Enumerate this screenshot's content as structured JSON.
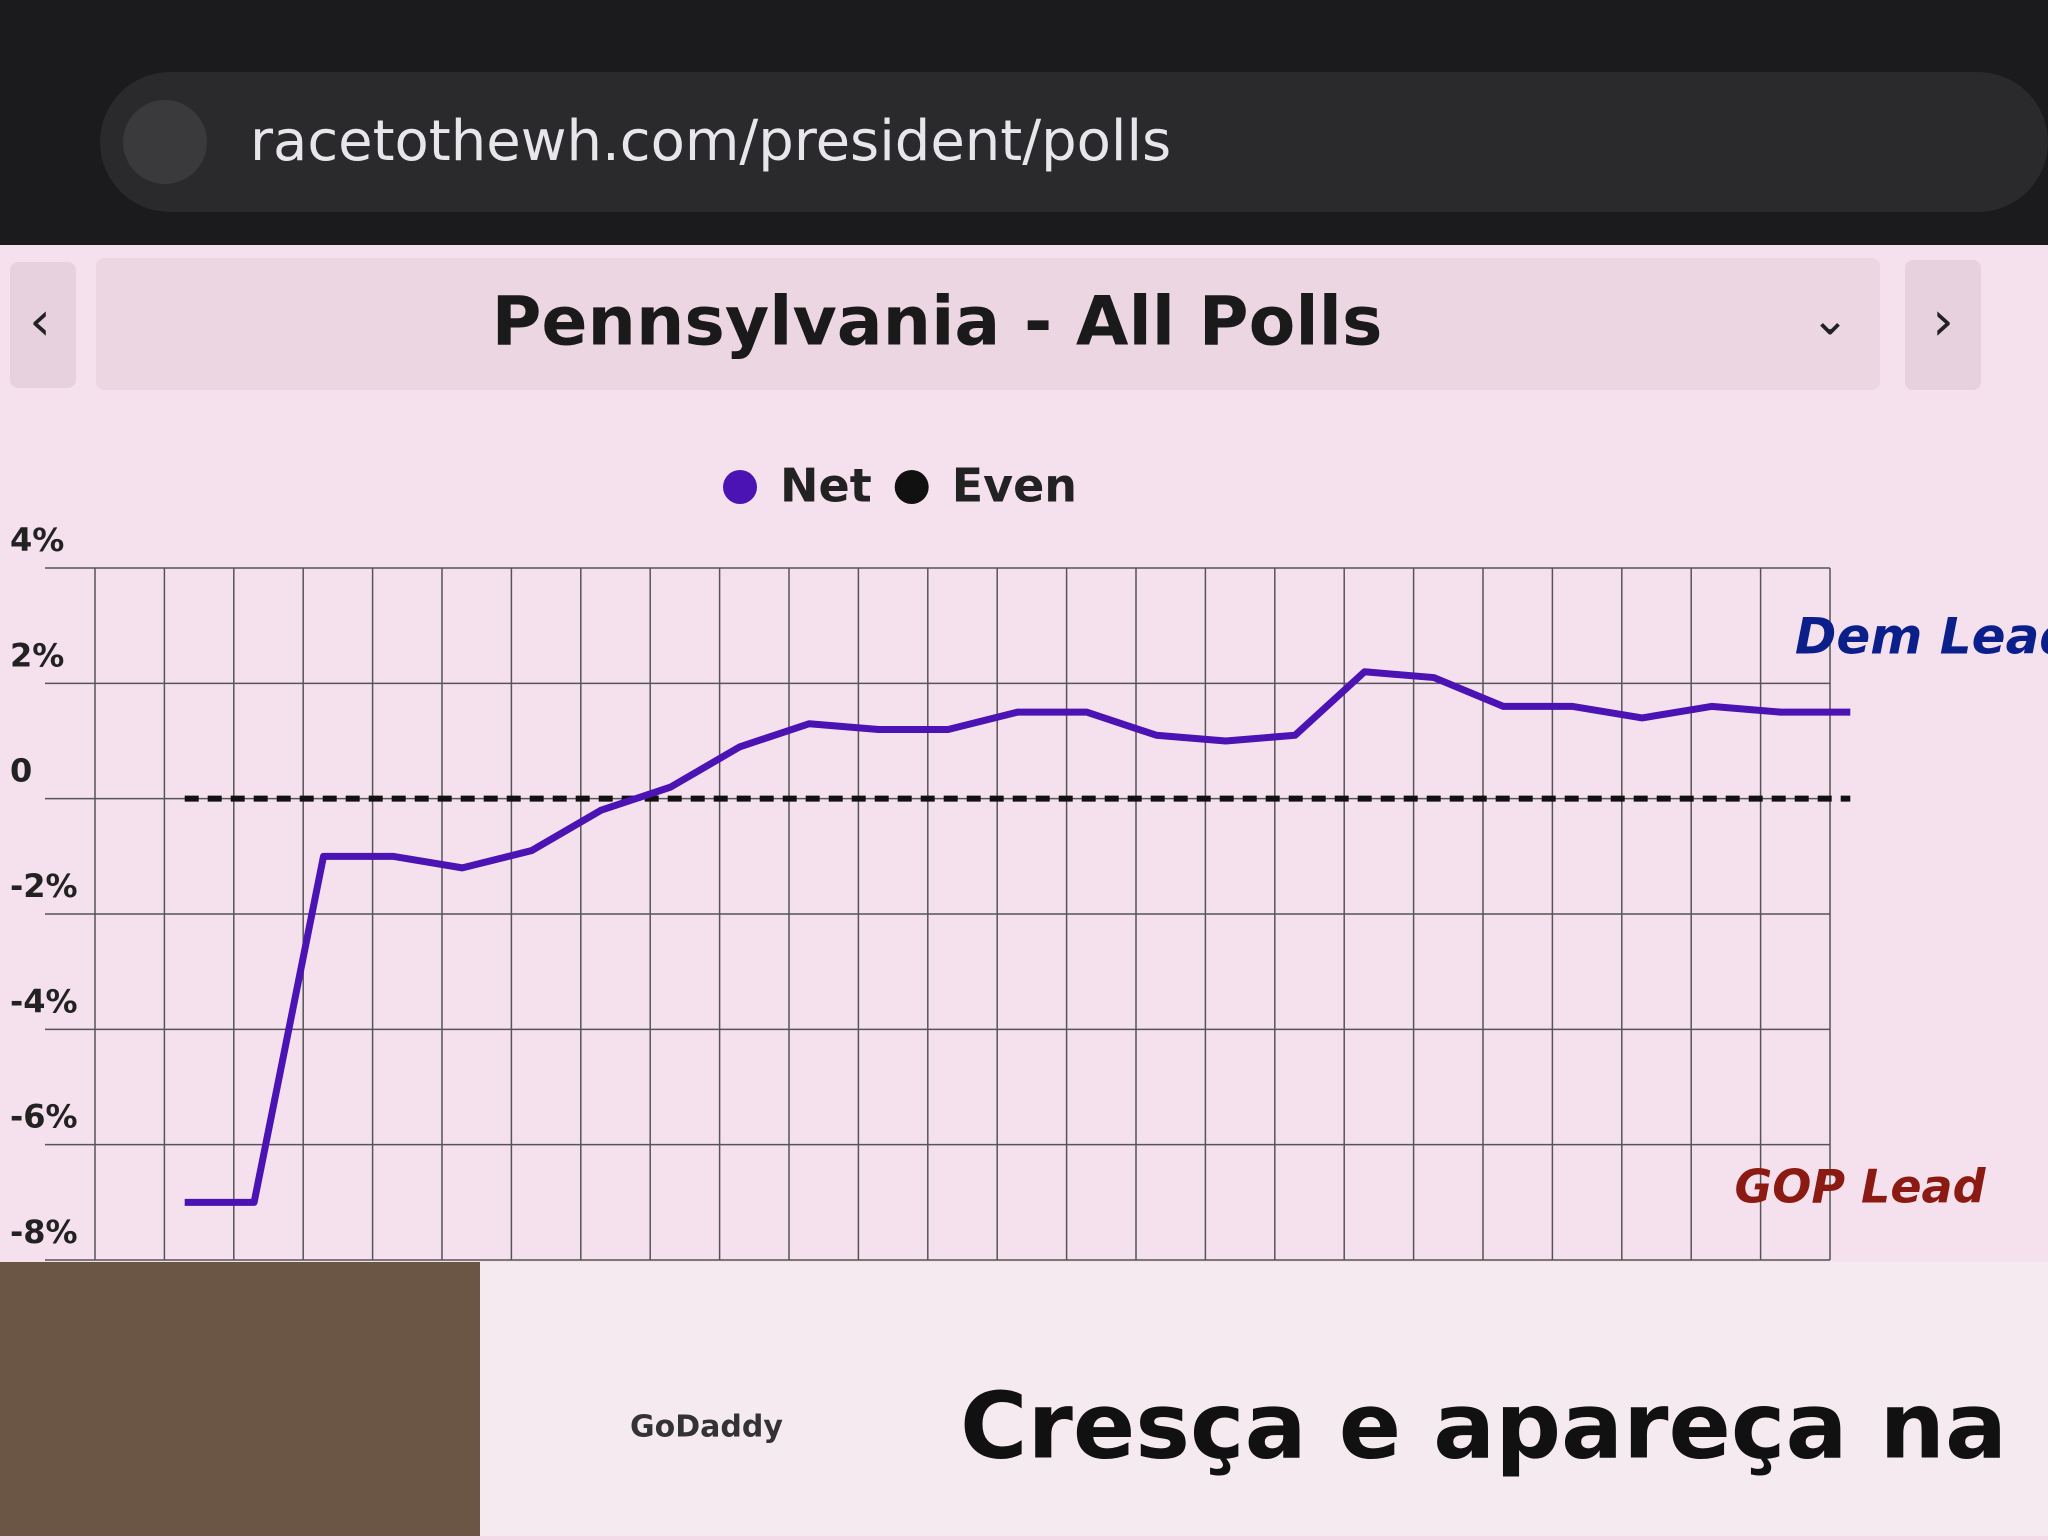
{
  "browser": {
    "url": "racetothewh.com/president/polls"
  },
  "chart_data": {
    "type": "line",
    "title": "Pennsylvania - All Polls",
    "categories": [
      null,
      null,
      null,
      null,
      null,
      null,
      null,
      null,
      null,
      null,
      null,
      null,
      null,
      null,
      null,
      null,
      null,
      null,
      null,
      null,
      null,
      null,
      null,
      null,
      null
    ],
    "series": [
      {
        "name": "Net",
        "color": "#4b12b4",
        "values": [
          -7.0,
          -7.0,
          -1.0,
          -1.0,
          -1.2,
          -0.9,
          -0.2,
          0.2,
          0.9,
          1.3,
          1.2,
          1.2,
          1.5,
          1.5,
          1.1,
          1.0,
          1.1,
          2.2,
          2.1,
          1.6,
          1.6,
          1.4,
          1.6,
          1.5,
          1.5
        ]
      },
      {
        "name": "Even",
        "color": "#111111",
        "dashed": true,
        "values": [
          0,
          0,
          0,
          0,
          0,
          0,
          0,
          0,
          0,
          0,
          0,
          0,
          0,
          0,
          0,
          0,
          0,
          0,
          0,
          0,
          0,
          0,
          0,
          0,
          0
        ]
      }
    ],
    "ylim": [
      -8,
      4
    ],
    "yticks": [
      {
        "value": 4,
        "label": "4%"
      },
      {
        "value": 2,
        "label": "2%"
      },
      0,
      {
        "value": -2,
        "label": "-2%"
      },
      {
        "value": -4,
        "label": "-4%"
      },
      {
        "value": -6,
        "label": "-6%"
      },
      {
        "value": -8,
        "label": "-8%"
      }
    ],
    "grid": true,
    "annotations": {
      "top": "Dem Lead",
      "top_color": "#0b1f8a",
      "bottom": "GOP Lead",
      "bottom_color": "#8a1a12"
    }
  },
  "ad": {
    "brand": "GoDaddy",
    "headline": "Cresça e apareça na"
  }
}
